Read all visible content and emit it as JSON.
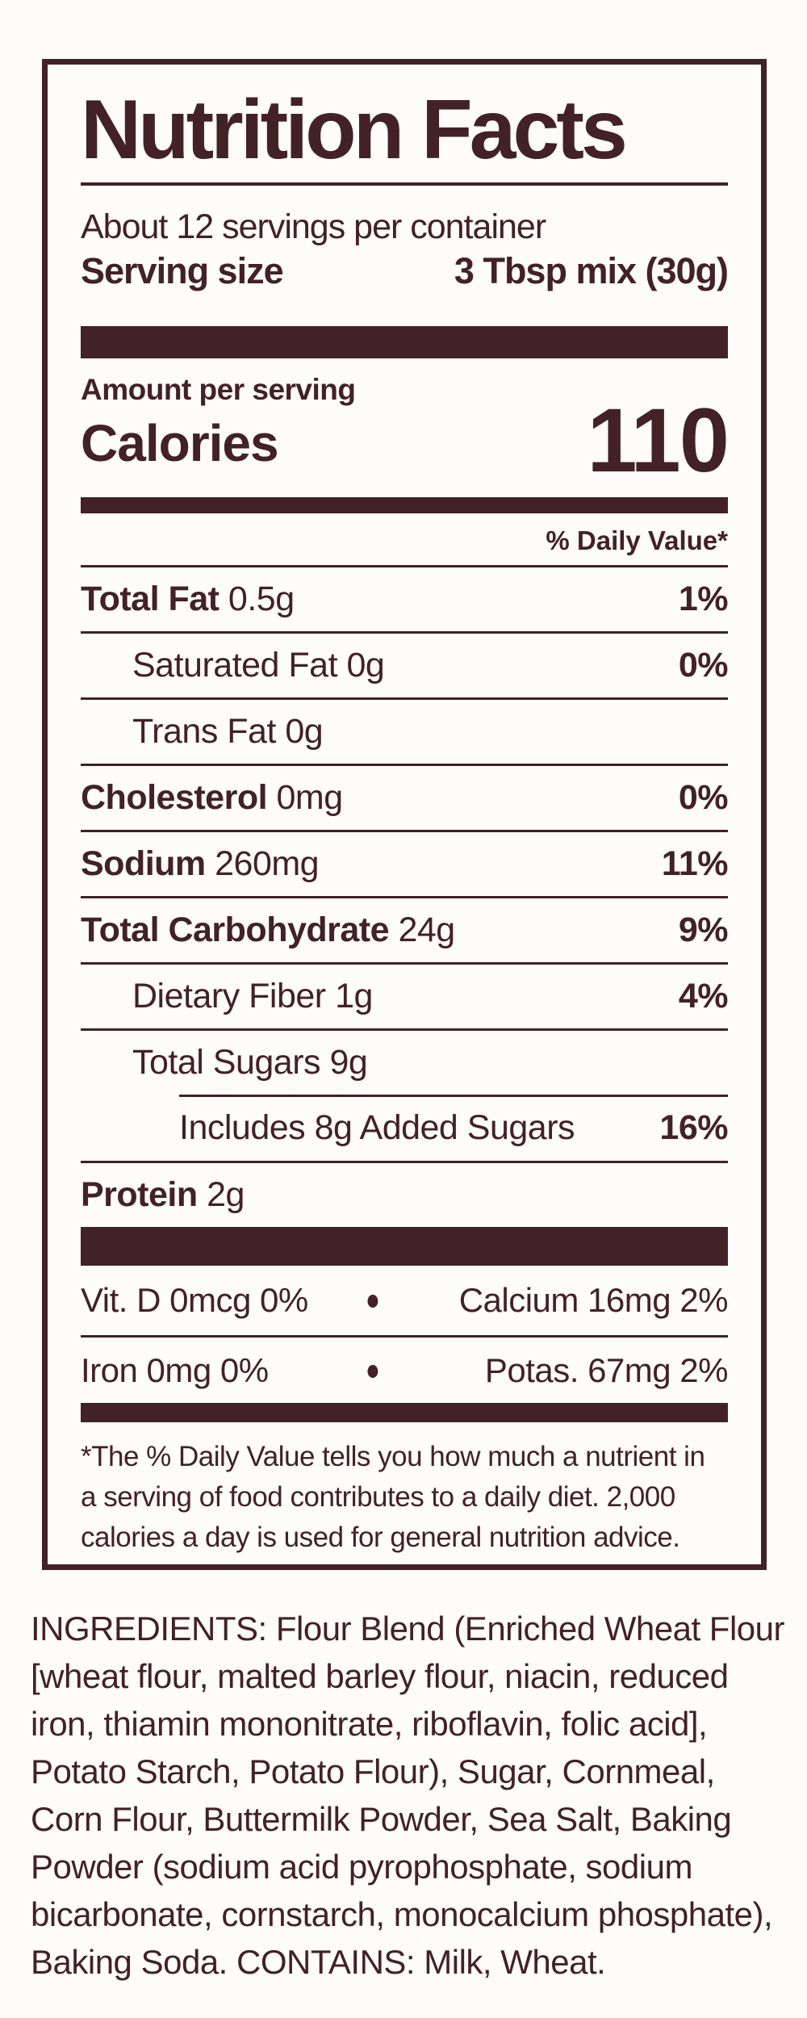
{
  "colors": {
    "accent": "#422127",
    "background": "#fdfcf8"
  },
  "label": {
    "title": "Nutrition Facts",
    "servings_per_container": "About 12 servings per container",
    "serving_size_label": "Serving size",
    "serving_size_value": "3 Tbsp mix (30g)",
    "amount_per_serving": "Amount per serving",
    "calories_label": "Calories",
    "calories_value": "110",
    "daily_value_header": "% Daily Value*",
    "rows": [
      {
        "bold": "Total Fat",
        "rest": " 0.5g",
        "dv": "1%"
      },
      {
        "bold": "",
        "rest": "Saturated Fat 0g",
        "dv": "0%"
      },
      {
        "bold": "",
        "rest": "Trans Fat 0g",
        "dv": ""
      },
      {
        "bold": "Cholesterol",
        "rest": " 0mg",
        "dv": "0%"
      },
      {
        "bold": "Sodium",
        "rest": " 260mg",
        "dv": "11%"
      },
      {
        "bold": "Total Carbohydrate",
        "rest": " 24g",
        "dv": "9%"
      },
      {
        "bold": "",
        "rest": "Dietary Fiber 1g",
        "dv": "4%"
      },
      {
        "bold": "",
        "rest": "Total Sugars 9g",
        "dv": ""
      },
      {
        "bold": "",
        "rest": "Includes 8g Added Sugars",
        "dv": "16%"
      },
      {
        "bold": "Protein",
        "rest": " 2g",
        "dv": ""
      }
    ],
    "bullet": "●",
    "micronutrients": [
      {
        "left": "Vit. D 0mcg 0%",
        "right": "Calcium 16mg 2%"
      },
      {
        "left": "Iron 0mg 0%",
        "right": "Potas. 67mg 2%"
      }
    ],
    "footnote": "*The % Daily Value tells you how much a nutrient in\na serving of food contributes to a daily diet. 2,000\ncalories a day is used for general nutrition advice."
  },
  "ingredients": "INGREDIENTS: Flour Blend (Enriched Wheat Flour\n[wheat flour, malted barley flour, niacin, reduced\niron, thiamin mononitrate, riboflavin, folic acid],\nPotato Starch, Potato Flour), Sugar, Cornmeal,\nCorn Flour, Buttermilk Powder, Sea Salt, Baking\nPowder (sodium acid pyrophosphate, sodium\nbicarbonate, cornstarch, monocalcium phosphate),\nBaking Soda. CONTAINS: Milk, Wheat."
}
